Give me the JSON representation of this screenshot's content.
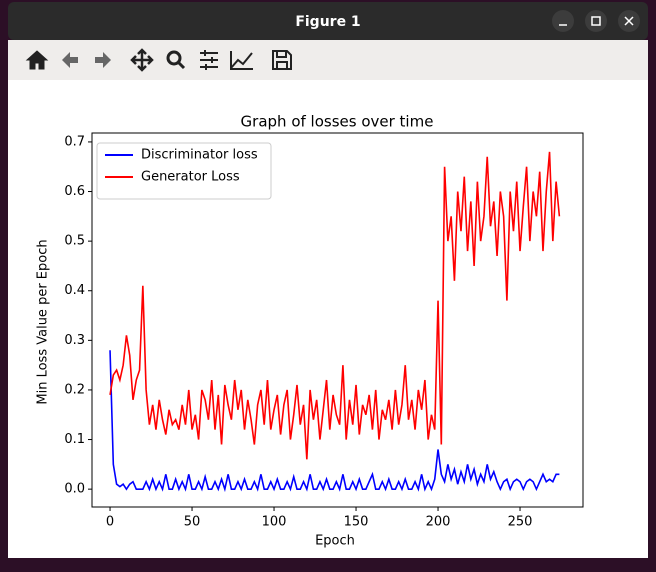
{
  "window": {
    "title": "Figure 1"
  },
  "chart_data": {
    "type": "line",
    "title": "Graph of losses over time",
    "x_label": "Epoch",
    "y_label": "Min Loss Value per Epoch",
    "xlim": [
      -11,
      288.4
    ],
    "ylim": [
      -0.036,
      0.718
    ],
    "xticks": [
      0,
      50,
      100,
      150,
      200,
      250
    ],
    "yticks": [
      {
        "value": 0,
        "label": "0.0"
      },
      0.1,
      0.2,
      0.3,
      0.4,
      0.5,
      0.6,
      0.7
    ],
    "grid": false,
    "legend": "upper left",
    "x": [
      0,
      2,
      4,
      6,
      8,
      10,
      12,
      14,
      16,
      18,
      20,
      22,
      24,
      26,
      28,
      30,
      32,
      34,
      36,
      38,
      40,
      42,
      44,
      46,
      48,
      50,
      52,
      54,
      56,
      58,
      60,
      62,
      64,
      66,
      68,
      70,
      72,
      74,
      76,
      78,
      80,
      82,
      84,
      86,
      88,
      90,
      92,
      94,
      96,
      98,
      100,
      102,
      104,
      106,
      108,
      110,
      112,
      114,
      116,
      118,
      120,
      122,
      124,
      126,
      128,
      130,
      132,
      134,
      136,
      138,
      140,
      142,
      144,
      146,
      148,
      150,
      152,
      154,
      156,
      158,
      160,
      162,
      164,
      166,
      168,
      170,
      172,
      174,
      176,
      178,
      180,
      182,
      184,
      186,
      188,
      190,
      192,
      194,
      196,
      198,
      200,
      202,
      204,
      206,
      208,
      210,
      212,
      214,
      216,
      218,
      220,
      222,
      224,
      226,
      228,
      230,
      232,
      234,
      236,
      238,
      240,
      242,
      244,
      246,
      248,
      250,
      252,
      254,
      256,
      258,
      260,
      262,
      264,
      266,
      268,
      270,
      272,
      274
    ],
    "series": [
      {
        "name": "Discriminator loss",
        "color": "#0000ff",
        "values": [
          0.28,
          0.05,
          0.01,
          0.005,
          0.01,
          0.0,
          0.01,
          0.015,
          0.0,
          0.0,
          0.0,
          0.015,
          0.0,
          0.02,
          0.0,
          0.015,
          0.0,
          0.03,
          0.0,
          0.0,
          0.02,
          0.0,
          0.015,
          0.0,
          0.03,
          0.0,
          0.0,
          0.015,
          0.0,
          0.025,
          0.0,
          0.0,
          0.015,
          0.0,
          0.02,
          0.0,
          0.03,
          0.0,
          0.0,
          0.015,
          0.0,
          0.02,
          0.0,
          0.0,
          0.015,
          0.0,
          0.03,
          0.0,
          0.0,
          0.015,
          0.0,
          0.02,
          0.0,
          0.0,
          0.015,
          0.0,
          0.025,
          0.0,
          0.0,
          0.015,
          0.0,
          0.03,
          0.0,
          0.0,
          0.015,
          0.0,
          0.02,
          0.0,
          0.0,
          0.015,
          0.0,
          0.03,
          0.0,
          0.0,
          0.015,
          0.0,
          0.02,
          0.0,
          0.0,
          0.015,
          0.03,
          0.0,
          0.0,
          0.015,
          0.0,
          0.02,
          0.0,
          0.0,
          0.015,
          0.0,
          0.02,
          0.0,
          0.0,
          0.015,
          0.0,
          0.03,
          0.0,
          0.015,
          0.0,
          0.02,
          0.08,
          0.03,
          0.015,
          0.05,
          0.02,
          0.04,
          0.01,
          0.035,
          0.015,
          0.05,
          0.02,
          0.04,
          0.01,
          0.03,
          0.015,
          0.05,
          0.02,
          0.035,
          0.015,
          0.0,
          0.015,
          0.02,
          0.0,
          0.015,
          0.02,
          0.015,
          0.0,
          0.015,
          0.02,
          0.015,
          0.0,
          0.015,
          0.03,
          0.015,
          0.02,
          0.015,
          0.03,
          0.03
        ]
      },
      {
        "name": "Generator Loss",
        "color": "#ff0000",
        "values": [
          0.19,
          0.23,
          0.24,
          0.22,
          0.25,
          0.31,
          0.27,
          0.18,
          0.22,
          0.24,
          0.41,
          0.2,
          0.13,
          0.17,
          0.12,
          0.18,
          0.14,
          0.11,
          0.16,
          0.13,
          0.14,
          0.12,
          0.17,
          0.13,
          0.2,
          0.12,
          0.15,
          0.1,
          0.2,
          0.18,
          0.14,
          0.22,
          0.12,
          0.19,
          0.09,
          0.21,
          0.17,
          0.14,
          0.22,
          0.16,
          0.2,
          0.12,
          0.18,
          0.14,
          0.09,
          0.17,
          0.2,
          0.13,
          0.22,
          0.12,
          0.16,
          0.19,
          0.11,
          0.17,
          0.2,
          0.1,
          0.15,
          0.21,
          0.13,
          0.17,
          0.06,
          0.2,
          0.14,
          0.18,
          0.1,
          0.16,
          0.22,
          0.12,
          0.19,
          0.15,
          0.13,
          0.25,
          0.1,
          0.18,
          0.13,
          0.21,
          0.11,
          0.17,
          0.15,
          0.19,
          0.12,
          0.2,
          0.1,
          0.16,
          0.14,
          0.18,
          0.12,
          0.2,
          0.13,
          0.17,
          0.25,
          0.14,
          0.18,
          0.12,
          0.2,
          0.16,
          0.22,
          0.1,
          0.15,
          0.12,
          0.38,
          0.09,
          0.65,
          0.5,
          0.55,
          0.42,
          0.6,
          0.52,
          0.63,
          0.48,
          0.58,
          0.45,
          0.62,
          0.5,
          0.55,
          0.67,
          0.53,
          0.58,
          0.47,
          0.6,
          0.55,
          0.38,
          0.6,
          0.52,
          0.62,
          0.48,
          0.57,
          0.65,
          0.5,
          0.6,
          0.55,
          0.64,
          0.48,
          0.6,
          0.68,
          0.5,
          0.62,
          0.55
        ]
      }
    ]
  }
}
